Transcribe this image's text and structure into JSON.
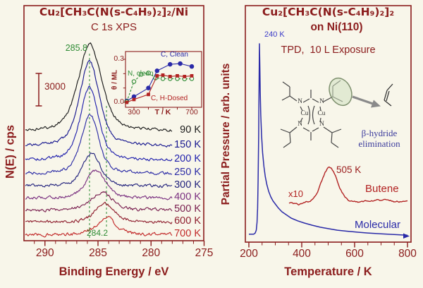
{
  "colors": {
    "maroon": "#8b1c1c",
    "green": "#2e8b34",
    "blue": "#2a2aa8",
    "label_blue": "#3a3ac8",
    "red": "#b22222",
    "dark_red": "#9c2020",
    "purple": "#7a3080",
    "gray_arrow": "#8a8a8a"
  },
  "left_panel": {
    "title": "Cu₂[CH₃C(N(s-C₄H₉)₂]₂/Ni",
    "subtitle": "C 1s XPS",
    "ylabel": "N(E) / cps",
    "xlabel": "Binding Energy / eV",
    "scale_bar_label": "3000",
    "peak_label_high": "285.8",
    "peak_label_low": "284.2",
    "inset": {
      "ylabel": "θ / ML",
      "xlabel": "T / K",
      "ytick_top": "0.3",
      "ytick_bottom": "0.0",
      "xtick_left": "300",
      "xtick_right": "700",
      "series_labels": {
        "c_clean": "C, Clean",
        "n_clean": "N, clean",
        "c_h_dosed": "C, H-Dosed"
      }
    }
  },
  "right_panel": {
    "title": "Cu₂[CH₃C(N(s-C₄H₉)₂]₂",
    "title2": "on Ni(110)",
    "subtitle": "TPD,  10 L Exposure",
    "ylabel": "Partial Pressure / arb. units",
    "xlabel": "Temperature / K",
    "peak_label_molecular": "240 K",
    "peak_label_butene": "505 K",
    "scale_label": "x10",
    "series_label_butene": "Butene",
    "series_label_molecular": "Molecular",
    "mechanism_label_line1": "β-hydride",
    "mechanism_label_line2": "elimination",
    "structure": {
      "cu": "Cu",
      "n": "N"
    }
  },
  "chart_data": [
    {
      "id": "xps_main",
      "type": "line",
      "title": "Cu2[CH3C(N(s-C4H9)2]2/Ni  C 1s XPS",
      "xlabel": "Binding Energy / eV",
      "ylabel": "N(E) / cps",
      "x_axis_reversed": true,
      "x_ticks": [
        290,
        285,
        280,
        275
      ],
      "x_minor_step_ev": 1,
      "x_range_ev": [
        291.9,
        275.0
      ],
      "scale_bar_counts": 3000,
      "dashed_markers_ev": [
        285.8,
        284.2
      ],
      "series": [
        {
          "label": "90 K",
          "color": "#1a1a1a",
          "peak_ev": 285.75,
          "amplitude": 123,
          "fwhm_ev": 2.6,
          "offset": 186,
          "noise": 1.7
        },
        {
          "label": "150 K",
          "color": "#17178f",
          "peak_ev": 285.8,
          "amplitude": 120,
          "fwhm_ev": 2.2,
          "offset": 207,
          "noise": 1.7
        },
        {
          "label": "200 K",
          "color": "#2222ad",
          "peak_ev": 285.8,
          "amplitude": 104,
          "fwhm_ev": 2.0,
          "offset": 227,
          "noise": 1.7
        },
        {
          "label": "250 K",
          "color": "#2c2ca6",
          "peak_ev": 285.75,
          "amplitude": 84,
          "fwhm_ev": 1.9,
          "offset": 246,
          "noise": 1.8
        },
        {
          "label": "300 K",
          "color": "#23237d",
          "peak_ev": 285.6,
          "amplitude": 47,
          "fwhm_ev": 2.0,
          "offset": 264,
          "noise": 1.8
        },
        {
          "label": "400 K",
          "color": "#7a3080",
          "peak_ev": 285.2,
          "amplitude": 40,
          "fwhm_ev": 2.2,
          "offset": 281,
          "noise": 1.8
        },
        {
          "label": "500 K",
          "color": "#7a2050",
          "peak_ev": 284.6,
          "amplitude": 26,
          "fwhm_ev": 2.4,
          "offset": 298,
          "noise": 1.9
        },
        {
          "label": "600 K",
          "color": "#8f1f2f",
          "peak_ev": 284.35,
          "amplitude": 27,
          "fwhm_ev": 2.2,
          "offset": 315,
          "noise": 1.9
        },
        {
          "label": "700 K",
          "color": "#c22a2a",
          "peak_ev": 284.2,
          "amplitude": 25,
          "fwhm_ev": 2.2,
          "offset": 333,
          "noise": 2.0
        }
      ]
    },
    {
      "id": "xps_inset",
      "type": "scatter",
      "xlabel": "T / K",
      "ylabel": "θ / ML",
      "x_ticks": [
        300,
        700
      ],
      "x_minor_step": 100,
      "y_ticks": [
        0.0,
        0.3
      ],
      "x_range": [
        242,
        768
      ],
      "y_range": [
        -0.02,
        0.34
      ],
      "series": [
        {
          "label": "C, Clean",
          "color": "#2a2aa8",
          "marker": "circle-filled",
          "line": "solid",
          "x": [
            250,
            300,
            400,
            460,
            550,
            620,
            700
          ],
          "y": [
            0.01,
            0.04,
            0.1,
            0.22,
            0.265,
            0.27,
            0.25
          ]
        },
        {
          "label": "N, clean",
          "color": "#2e8b34",
          "marker": "circle-open",
          "line": "dashed",
          "x": [
            250,
            300,
            350,
            400,
            450,
            500,
            550,
            600,
            650,
            700
          ],
          "y": [
            0.005,
            0.145,
            0.195,
            0.205,
            0.17,
            0.165,
            0.165,
            0.165,
            0.163,
            0.165
          ]
        },
        {
          "label": "C, H-Dosed",
          "color": "#b22222",
          "marker": "square-filled",
          "line": "solid",
          "x": [
            250,
            300,
            400,
            460,
            500,
            550,
            600,
            650,
            700
          ],
          "y": [
            0.0,
            0.02,
            0.055,
            0.185,
            0.19,
            0.18,
            0.185,
            0.18,
            0.185
          ]
        }
      ]
    },
    {
      "id": "tpd",
      "type": "line",
      "xlabel": "Temperature / K",
      "ylabel": "Partial Pressure / arb. units",
      "x_ticks": [
        200,
        400,
        600,
        800
      ],
      "x_minor_step": 50,
      "x_range": [
        190,
        805
      ],
      "series": [
        {
          "label": "Molecular",
          "color": "#2a2aa8",
          "peak_k": 240,
          "points": [
            [
              200,
              0.04
            ],
            [
              218,
              0.04
            ],
            [
              224,
              0.046
            ],
            [
              228,
              0.06
            ],
            [
              231,
              0.1
            ],
            [
              233,
              0.17
            ],
            [
              235,
              0.31
            ],
            [
              237,
              0.54
            ],
            [
              238.5,
              0.76
            ],
            [
              240,
              1.0
            ],
            [
              241.5,
              0.88
            ],
            [
              243,
              0.76
            ],
            [
              245,
              0.64
            ],
            [
              248,
              0.54
            ],
            [
              252,
              0.45
            ],
            [
              257,
              0.38
            ],
            [
              262,
              0.33
            ],
            [
              268,
              0.29
            ],
            [
              275,
              0.256
            ],
            [
              283,
              0.228
            ],
            [
              292,
              0.206
            ],
            [
              300,
              0.192
            ],
            [
              312,
              0.171
            ],
            [
              325,
              0.153
            ],
            [
              340,
              0.139
            ],
            [
              360,
              0.121
            ],
            [
              385,
              0.107
            ],
            [
              410,
              0.096
            ],
            [
              440,
              0.085
            ],
            [
              470,
              0.075
            ],
            [
              500,
              0.068
            ],
            [
              535,
              0.06
            ],
            [
              570,
              0.055
            ],
            [
              610,
              0.05
            ],
            [
              650,
              0.046
            ],
            [
              700,
              0.042
            ],
            [
              750,
              0.038
            ],
            [
              800,
              0.035
            ]
          ]
        },
        {
          "label": "Butene",
          "color": "#b22222",
          "scale_factor": 10,
          "peak_k": 505,
          "baseline": 0.2,
          "peak_amplitude": 0.175,
          "peak_sigma_k": 30,
          "bump_k": 700,
          "bump_amplitude": 0.013,
          "bump_sigma_k": 45,
          "dip_k": 387,
          "dip_amplitude": 0.012,
          "dip_sigma_k": 16,
          "range_k": [
            352,
            800
          ],
          "noise": 0.009
        }
      ]
    }
  ]
}
